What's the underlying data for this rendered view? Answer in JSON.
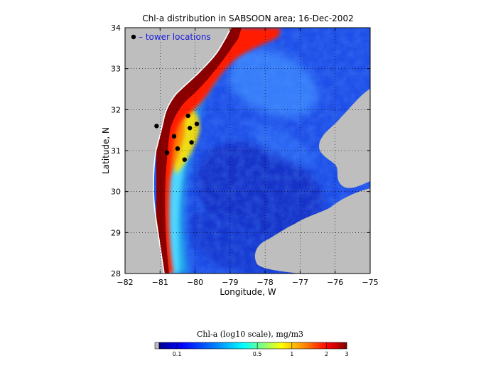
{
  "title": "Chl-a distribution in SABSOON area; 16-Dec-2002",
  "axes": {
    "xlabel": "Longitude, W",
    "ylabel": "Latitude, N",
    "xlim": [
      -82,
      -75
    ],
    "ylim": [
      28,
      34
    ],
    "xticks": [
      -82,
      -81,
      -80,
      -79,
      -78,
      -77,
      -76,
      -75
    ],
    "xtick_labels": [
      "−82",
      "−81",
      "−80",
      "−79",
      "−78",
      "−77",
      "−76",
      "−75"
    ],
    "yticks": [
      28,
      29,
      30,
      31,
      32,
      33,
      34
    ],
    "ytick_labels": [
      "28",
      "29",
      "30",
      "31",
      "32",
      "33",
      "34"
    ],
    "grid": true,
    "grid_style": "dotted"
  },
  "legend": {
    "label": "– tower locations",
    "marker_color": "#000000",
    "text_color": "#1a1adc",
    "placement": "top-left"
  },
  "towers": [
    {
      "lon": -81.1,
      "lat": 31.6
    },
    {
      "lon": -80.2,
      "lat": 31.85
    },
    {
      "lon": -79.95,
      "lat": 31.65
    },
    {
      "lon": -80.6,
      "lat": 31.35
    },
    {
      "lon": -80.15,
      "lat": 31.55
    },
    {
      "lon": -80.1,
      "lat": 31.2
    },
    {
      "lon": -80.5,
      "lat": 31.05
    },
    {
      "lon": -80.8,
      "lat": 30.95
    },
    {
      "lon": -80.3,
      "lat": 30.78
    }
  ],
  "colorbar": {
    "title": "Chl-a (log10 scale), mg/m3",
    "tick_labels": [
      "0.1",
      "0.5",
      "1",
      "2",
      "3"
    ],
    "tick_values": [
      0.1,
      0.5,
      1,
      2,
      3
    ],
    "range": [
      0.07,
      3
    ],
    "colors": [
      "#00008f",
      "#0000ff",
      "#0080ff",
      "#00ffff",
      "#80ff80",
      "#ffff00",
      "#ff8000",
      "#ff0000",
      "#800000"
    ]
  },
  "colors": {
    "land": "#bebebe",
    "cloud": "#bebebe",
    "coast": "#ffffff",
    "ocean_low": "#1a3fe0",
    "ocean_mid": "#3b8cff",
    "shelf_high": "#ff2a00",
    "shelf_max": "#7a0000"
  }
}
